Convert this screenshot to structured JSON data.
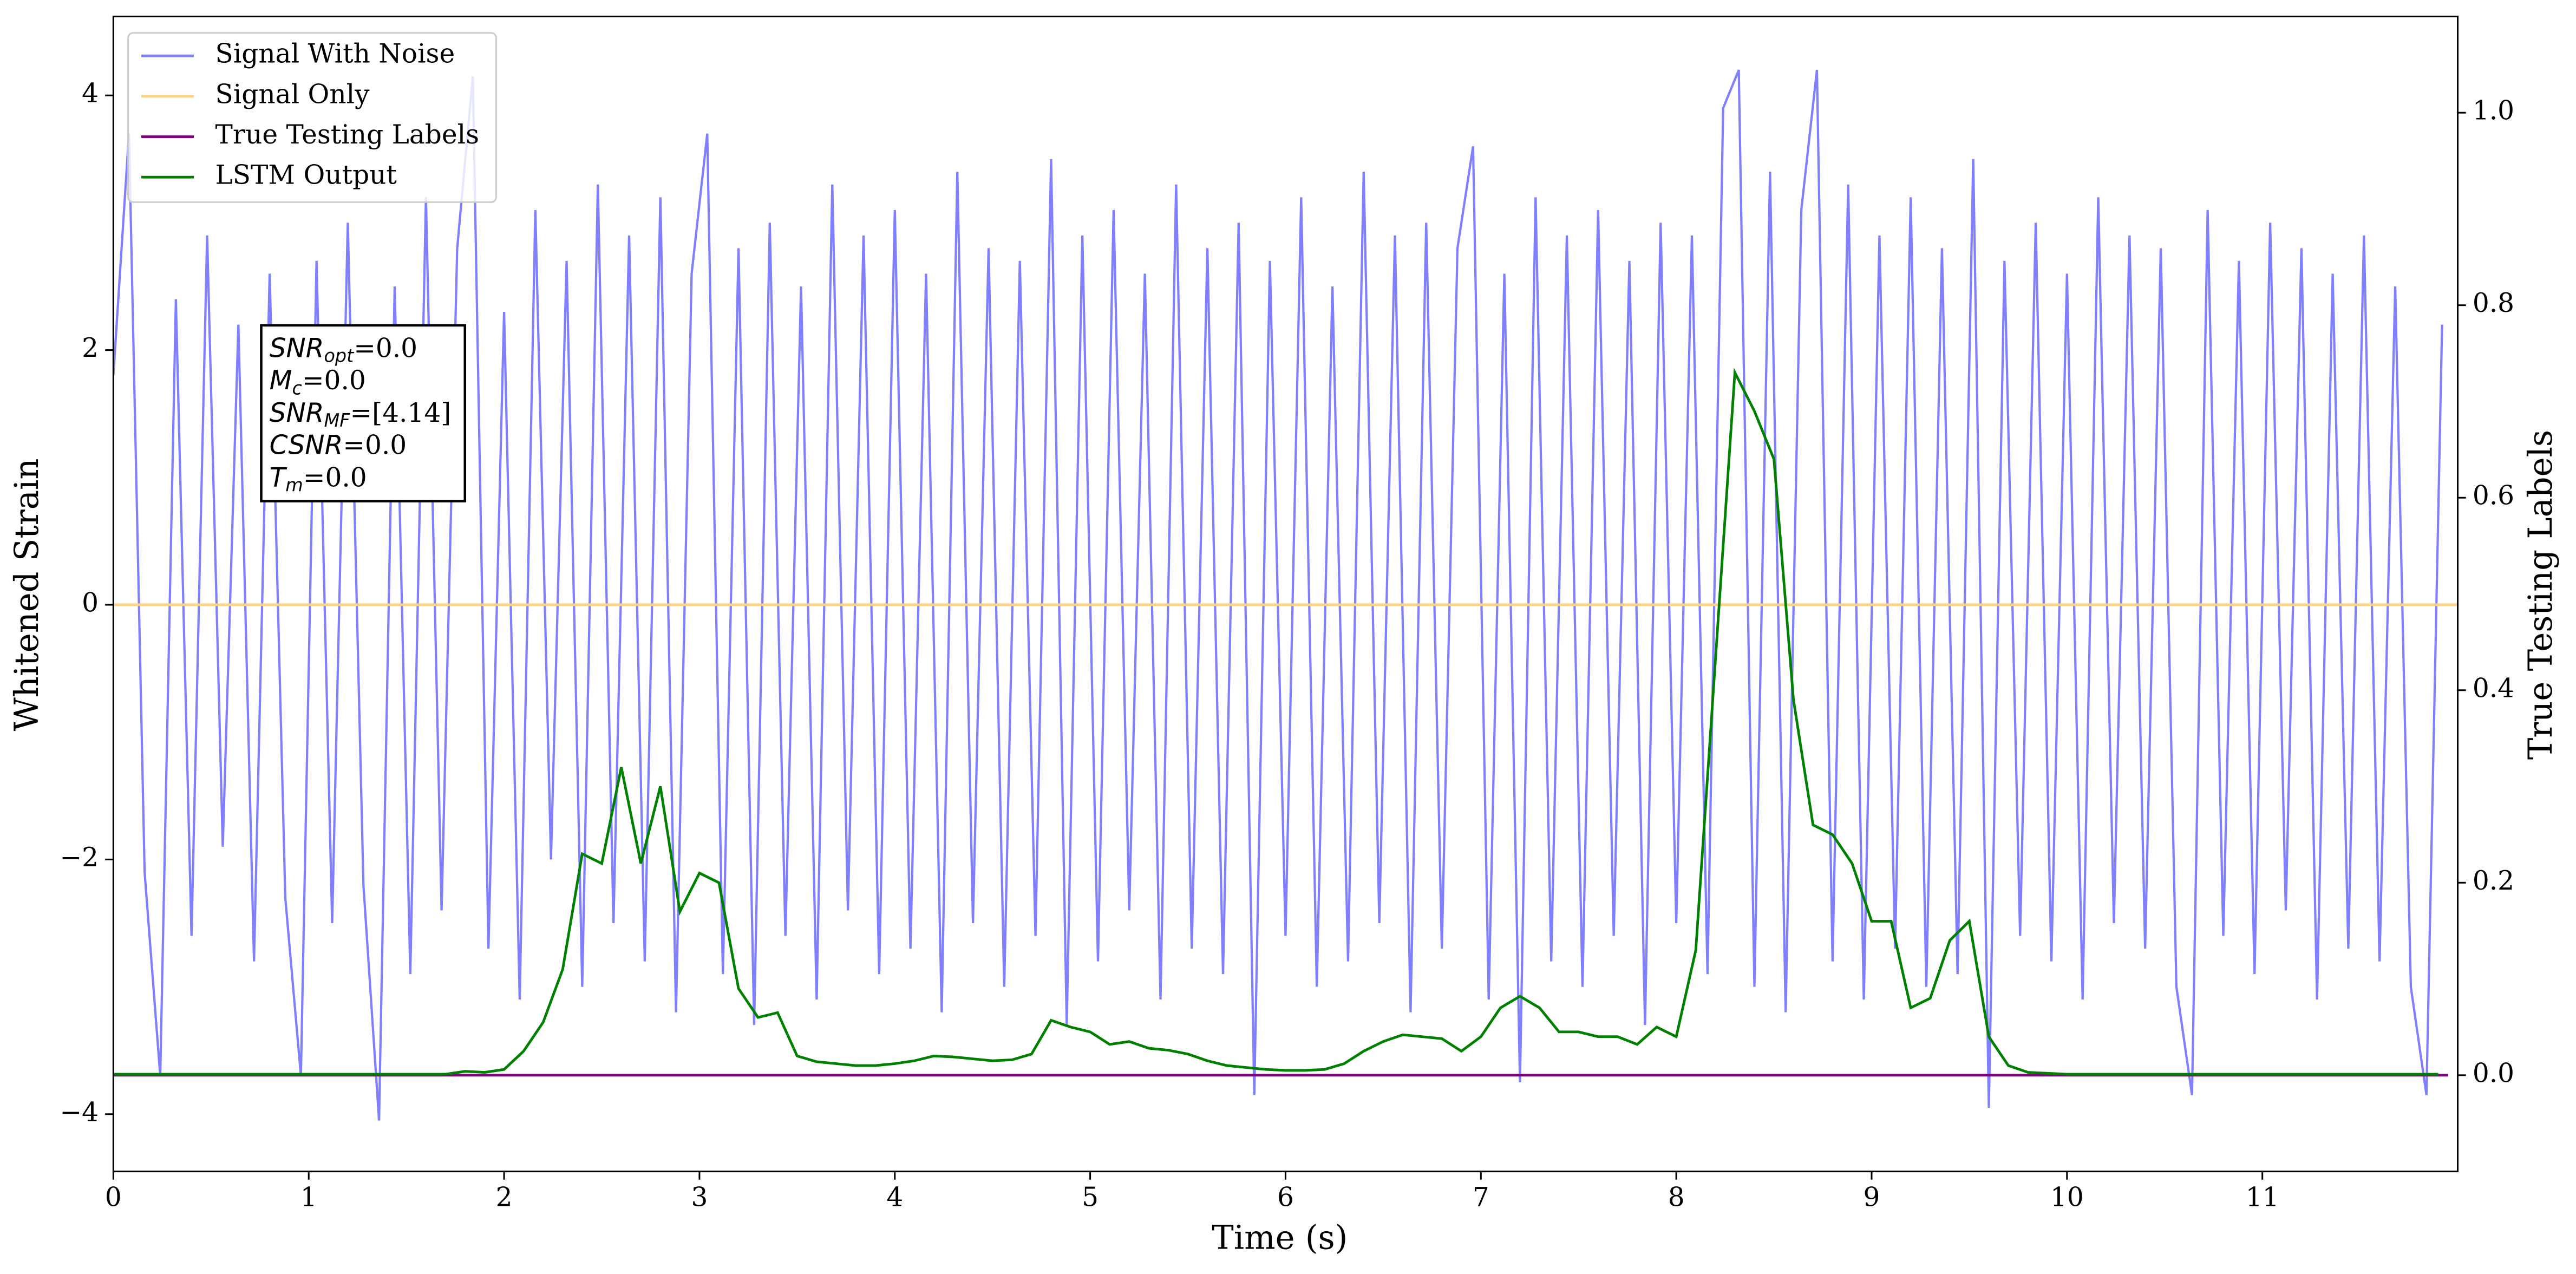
{
  "chart_data": {
    "type": "line",
    "xlabel": "Time (s)",
    "ylabel": "Whitened Strain",
    "y2label": "True Testing Labels",
    "xlim": [
      0,
      12
    ],
    "xticks": [
      0,
      1,
      2,
      3,
      4,
      5,
      6,
      7,
      8,
      9,
      10,
      11
    ],
    "ylim": [
      -4.45,
      4.62
    ],
    "yticks": [
      {
        "value": -4,
        "label": "−4"
      },
      {
        "value": -2,
        "label": "−2"
      },
      0,
      2,
      4
    ],
    "y2lim": [
      -0.1,
      1.1
    ],
    "y2ticks": [
      {
        "value": 0,
        "label": "0.0"
      },
      {
        "value": 0.2,
        "label": "0.2"
      },
      {
        "value": 0.4,
        "label": "0.4"
      },
      {
        "value": 0.6,
        "label": "0.6"
      },
      {
        "value": 0.8,
        "label": "0.8"
      },
      {
        "value": 1,
        "label": "1.0"
      }
    ],
    "legend": "upper left",
    "annotations": [
      {
        "text": "SNR",
        "sub": "opt",
        "after": "=0.0"
      },
      {
        "text": "M",
        "sub": "c",
        "after": "=0.0"
      },
      {
        "text": "SNR",
        "sub": "MF",
        "after": "=[4.14]"
      },
      {
        "text": "CSNR",
        "after": "=0.0"
      },
      {
        "text": "T",
        "sub": "m",
        "after": "=0.0"
      }
    ],
    "series": [
      {
        "name": "Signal With Noise",
        "color": "#8080ff",
        "x": [
          0,
          0.08,
          0.16,
          0.24,
          0.32,
          0.4,
          0.48,
          0.56,
          0.64,
          0.72,
          0.8,
          0.88,
          0.96,
          1.04,
          1.12,
          1.2,
          1.28,
          1.36,
          1.44,
          1.52,
          1.6,
          1.68,
          1.76,
          1.84,
          1.92,
          2,
          2.08,
          2.16,
          2.24,
          2.32,
          2.4,
          2.48,
          2.56,
          2.64,
          2.72,
          2.8,
          2.88,
          2.96,
          3.04,
          3.12,
          3.2,
          3.28,
          3.36,
          3.44,
          3.52,
          3.6,
          3.68,
          3.76,
          3.84,
          3.92,
          4,
          4.08,
          4.16,
          4.24,
          4.32,
          4.4,
          4.48,
          4.56,
          4.64,
          4.72,
          4.8,
          4.88,
          4.96,
          5.04,
          5.12,
          5.2,
          5.28,
          5.36,
          5.44,
          5.52,
          5.6,
          5.68,
          5.76,
          5.84,
          5.92,
          6,
          6.08,
          6.16,
          6.24,
          6.32,
          6.4,
          6.48,
          6.56,
          6.64,
          6.72,
          6.8,
          6.88,
          6.96,
          7.04,
          7.12,
          7.2,
          7.28,
          7.36,
          7.44,
          7.52,
          7.6,
          7.68,
          7.76,
          7.84,
          7.92,
          8,
          8.08,
          8.16,
          8.24,
          8.32,
          8.4,
          8.48,
          8.56,
          8.64,
          8.72,
          8.8,
          8.88,
          8.96,
          9.04,
          9.12,
          9.2,
          9.28,
          9.36,
          9.44,
          9.52,
          9.6,
          9.68,
          9.76,
          9.84,
          9.92,
          10,
          10.08,
          10.16,
          10.24,
          10.32,
          10.4,
          10.48,
          10.56,
          10.64,
          10.72,
          10.8,
          10.88,
          10.96,
          11.04,
          11.12,
          11.2,
          11.28,
          11.36,
          11.44,
          11.52,
          11.6,
          11.68,
          11.76,
          11.84,
          11.92
        ],
        "values": [
          1.8,
          3.7,
          -2.1,
          -3.7,
          2.4,
          -2.6,
          2.9,
          -1.9,
          2.2,
          -2.8,
          2.6,
          -2.3,
          -3.7,
          2.7,
          -2.5,
          3.0,
          -2.2,
          -4.05,
          2.5,
          -2.9,
          3.2,
          -2.4,
          2.8,
          4.15,
          -2.7,
          2.3,
          -3.1,
          3.1,
          -2.0,
          2.7,
          -3.0,
          3.3,
          -2.5,
          2.9,
          -2.8,
          3.2,
          -3.2,
          2.6,
          3.7,
          -2.9,
          2.8,
          -3.3,
          3.0,
          -2.6,
          2.5,
          -3.1,
          3.3,
          -2.4,
          2.9,
          -2.9,
          3.1,
          -2.7,
          2.6,
          -3.2,
          3.4,
          -2.5,
          2.8,
          -3.0,
          2.7,
          -2.6,
          3.5,
          -3.3,
          2.9,
          -2.8,
          3.1,
          -2.4,
          2.6,
          -3.1,
          3.3,
          -2.7,
          2.8,
          -2.9,
          3.0,
          -3.85,
          2.7,
          -2.6,
          3.2,
          -3.0,
          2.5,
          -2.8,
          3.4,
          -2.5,
          2.9,
          -3.2,
          3.0,
          -2.7,
          2.8,
          3.6,
          -3.1,
          2.6,
          -3.75,
          3.2,
          -2.8,
          2.9,
          -3.0,
          3.1,
          -2.6,
          2.7,
          -3.3,
          3.0,
          -2.5,
          2.9,
          -2.9,
          3.9,
          4.2,
          -3.0,
          3.4,
          -3.2,
          3.1,
          4.2,
          -2.8,
          3.3,
          -3.1,
          2.9,
          -2.7,
          3.2,
          -3.0,
          2.8,
          -2.9,
          3.5,
          -3.95,
          2.7,
          -2.6,
          3.0,
          -2.8,
          2.6,
          -3.1,
          3.2,
          -2.5,
          2.9,
          -2.7,
          2.8,
          -3.0,
          -3.85,
          3.1,
          -2.6,
          2.7,
          -2.9,
          3.0,
          -2.4,
          2.8,
          -3.1,
          2.6,
          -2.7,
          2.9,
          -2.8,
          2.5,
          -3.0,
          -3.85,
          2.2
        ]
      },
      {
        "name": "Signal Only",
        "color": "#ffd27f",
        "x": [
          0,
          12
        ],
        "values": [
          0,
          0
        ]
      },
      {
        "name": "True Testing Labels",
        "color": "#800080",
        "axis": "y2",
        "x": [
          0,
          11.95
        ],
        "values": [
          0,
          0
        ]
      },
      {
        "name": "LSTM Output",
        "color": "#008000",
        "axis": "y2",
        "x": [
          0,
          0.1,
          0.2,
          0.3,
          0.4,
          0.5,
          0.6,
          0.7,
          0.8,
          0.9,
          1,
          1.1,
          1.2,
          1.3,
          1.4,
          1.5,
          1.6,
          1.7,
          1.8,
          1.9,
          2,
          2.1,
          2.2,
          2.3,
          2.4,
          2.5,
          2.6,
          2.7,
          2.8,
          2.9,
          3,
          3.1,
          3.2,
          3.3,
          3.4,
          3.5,
          3.6,
          3.7,
          3.8,
          3.9,
          4,
          4.1,
          4.2,
          4.3,
          4.4,
          4.5,
          4.6,
          4.7,
          4.8,
          4.9,
          5,
          5.1,
          5.2,
          5.3,
          5.4,
          5.5,
          5.6,
          5.7,
          5.8,
          5.9,
          6,
          6.1,
          6.2,
          6.3,
          6.4,
          6.5,
          6.6,
          6.7,
          6.8,
          6.9,
          7,
          7.1,
          7.2,
          7.3,
          7.4,
          7.5,
          7.6,
          7.7,
          7.8,
          7.9,
          8,
          8.1,
          8.2,
          8.3,
          8.4,
          8.5,
          8.6,
          8.7,
          8.8,
          8.9,
          9,
          9.1,
          9.2,
          9.3,
          9.4,
          9.5,
          9.6,
          9.7,
          9.8,
          9.9,
          10,
          10.1,
          10.2,
          10.3,
          10.4,
          10.5,
          10.6,
          10.7,
          10.8,
          10.9,
          11,
          11.1,
          11.2,
          11.3,
          11.4,
          11.5,
          11.6,
          11.7,
          11.8,
          11.9
        ],
        "values": [
          0.001,
          0.001,
          0.001,
          0.001,
          0.001,
          0.001,
          0.001,
          0.001,
          0.001,
          0.001,
          0.001,
          0.001,
          0.001,
          0.001,
          0.001,
          0.001,
          0.001,
          0.001,
          0.004,
          0.003,
          0.006,
          0.025,
          0.055,
          0.11,
          0.23,
          0.22,
          0.32,
          0.22,
          0.3,
          0.17,
          0.21,
          0.2,
          0.09,
          0.06,
          0.065,
          0.02,
          0.014,
          0.012,
          0.01,
          0.01,
          0.012,
          0.015,
          0.02,
          0.019,
          0.017,
          0.015,
          0.016,
          0.022,
          0.057,
          0.05,
          0.045,
          0.032,
          0.035,
          0.028,
          0.026,
          0.022,
          0.015,
          0.01,
          0.008,
          0.006,
          0.005,
          0.005,
          0.006,
          0.012,
          0.025,
          0.035,
          0.042,
          0.04,
          0.038,
          0.025,
          0.04,
          0.07,
          0.082,
          0.07,
          0.045,
          0.045,
          0.04,
          0.04,
          0.032,
          0.05,
          0.04,
          0.13,
          0.43,
          0.73,
          0.69,
          0.64,
          0.39,
          0.26,
          0.25,
          0.22,
          0.16,
          0.16,
          0.07,
          0.08,
          0.14,
          0.16,
          0.04,
          0.01,
          0.003,
          0.002,
          0.001,
          0.001,
          0.001,
          0.001,
          0.001,
          0.001,
          0.001,
          0.001,
          0.001,
          0.001,
          0.001,
          0.001,
          0.001,
          0.001,
          0.001,
          0.001,
          0.001,
          0.001,
          0.001,
          0.001
        ]
      }
    ]
  }
}
